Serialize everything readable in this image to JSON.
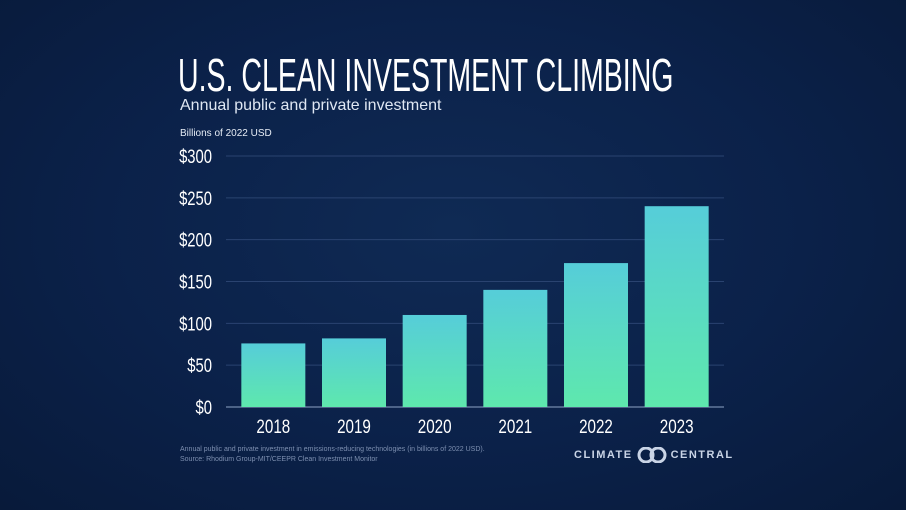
{
  "title": "U.S. CLEAN INVESTMENT CLIMBING",
  "subtitle": "Annual public and private investment",
  "unit_label": "Billions of 2022 USD",
  "footnote": {
    "line1": "Annual public and private investment in emissions-reducing technologies (in billions of 2022 USD).",
    "line2": "Source: Rhodium Group-MIT/CEEPR Clean Investment Monitor"
  },
  "brand": {
    "left": "CLIMATE",
    "right": "CENTRAL",
    "logo_icon": "climate-central-logo-icon"
  },
  "colors": {
    "background": "#0b2149",
    "bar_bottom": "#5ee8ad",
    "bar_top": "#56cdd9",
    "gridline": "#2a4370",
    "text": "#ffffff"
  },
  "chart_data": {
    "type": "bar",
    "categories": [
      "2018",
      "2019",
      "2020",
      "2021",
      "2022",
      "2023"
    ],
    "values": [
      76,
      82,
      110,
      140,
      172,
      240
    ],
    "title": "U.S. CLEAN INVESTMENT CLIMBING",
    "subtitle": "Annual public and private investment",
    "ylabel": "Billions of 2022 USD",
    "xlabel": "",
    "ylim": [
      0,
      300
    ],
    "yticks": [
      0,
      50,
      100,
      150,
      200,
      250,
      300
    ],
    "ytick_labels": [
      "$0",
      "$50",
      "$100",
      "$150",
      "$200",
      "$250",
      "$300"
    ],
    "grid": true,
    "legend": "none"
  }
}
